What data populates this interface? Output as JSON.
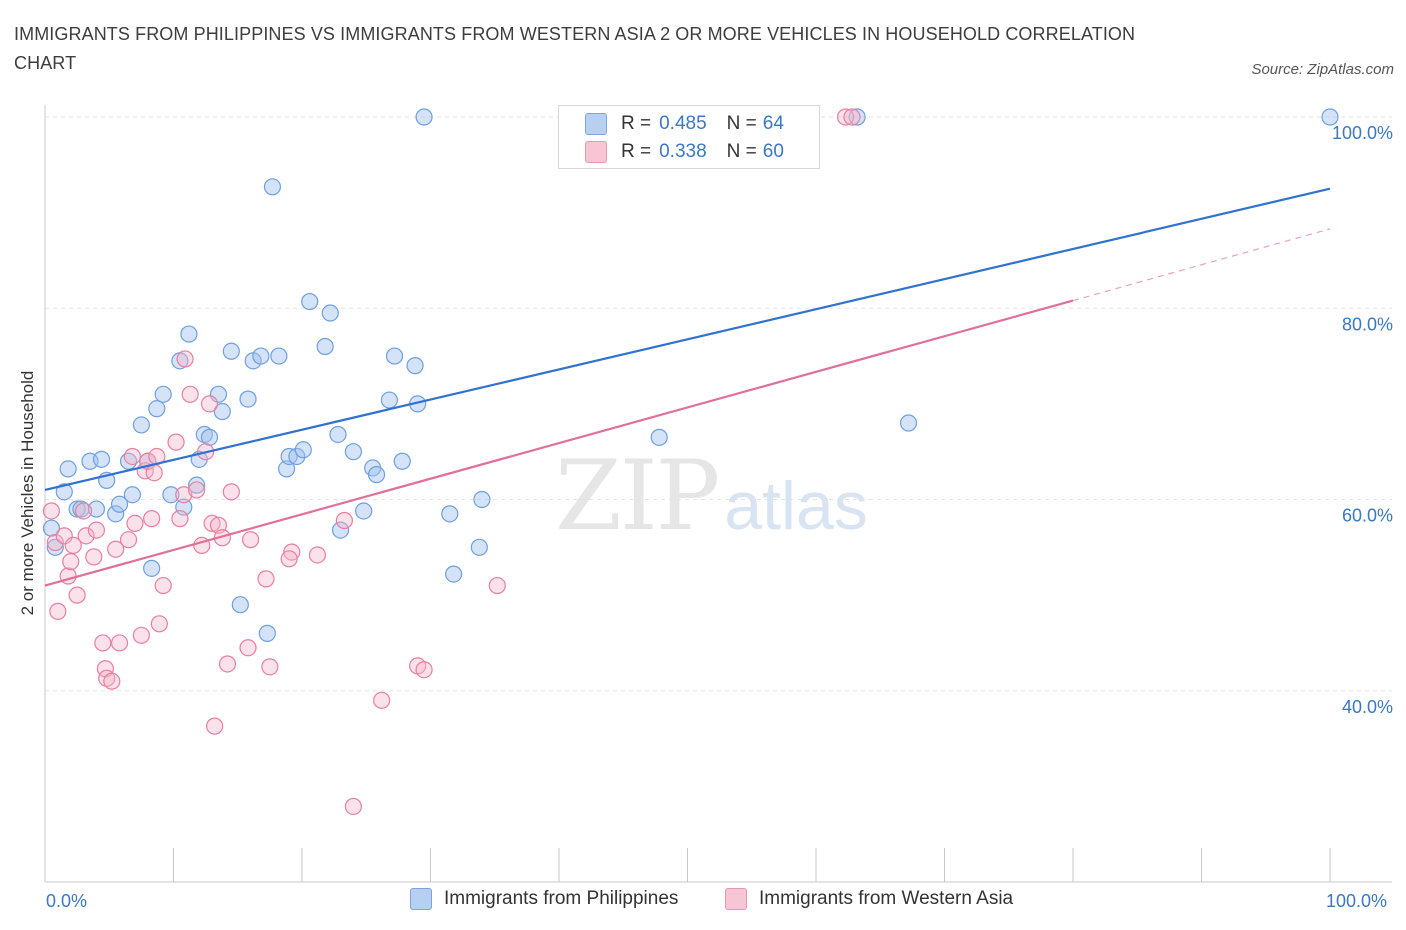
{
  "title": "IMMIGRANTS FROM PHILIPPINES VS IMMIGRANTS FROM WESTERN ASIA 2 OR MORE VEHICLES IN HOUSEHOLD CORRELATION CHART",
  "source": "Source: ZipAtlas.com",
  "watermark": {
    "zip": "ZIP",
    "atlas": "atlas"
  },
  "legend_top": [
    {
      "r_label": "R =",
      "r_value": "0.485",
      "n_label": "N =",
      "n_value": "64",
      "fill": "#b7cff0",
      "stroke": "#7ca3db"
    },
    {
      "r_label": "R =",
      "r_value": "0.338",
      "n_label": "N =",
      "n_value": "60",
      "fill": "#f7c5d3",
      "stroke": "#e996b0"
    }
  ],
  "chart_data": {
    "type": "scatter",
    "title": "IMMIGRANTS FROM PHILIPPINES VS IMMIGRANTS FROM WESTERN ASIA 2 OR MORE VEHICLES IN HOUSEHOLD CORRELATION CHART",
    "xlabel": "",
    "ylabel": "2 or more Vehicles in Household",
    "xlim": [
      0,
      100
    ],
    "ylim": [
      20,
      100
    ],
    "x_tick_labels": [
      "0.0%",
      "100.0%"
    ],
    "y_ticks": [
      40,
      60,
      80,
      100
    ],
    "y_tick_labels": [
      "40.0%",
      "60.0%",
      "80.0%",
      "100.0%"
    ],
    "grid": true,
    "legend": "bottom",
    "series": [
      {
        "name": "Immigrants from Philippines",
        "color": "#6f9fe0",
        "fill": "rgba(160,192,238,0.45)",
        "trend": {
          "x0": 0,
          "y0": 61.0,
          "x1": 100,
          "y1": 92.5
        },
        "points": [
          [
            0.5,
            57.0
          ],
          [
            0.8,
            55.0
          ],
          [
            1.5,
            60.8
          ],
          [
            1.8,
            63.2
          ],
          [
            2.5,
            59.0
          ],
          [
            2.8,
            59.0
          ],
          [
            3.5,
            64.0
          ],
          [
            4.0,
            59.0
          ],
          [
            4.4,
            64.2
          ],
          [
            4.8,
            62.0
          ],
          [
            5.5,
            58.5
          ],
          [
            5.8,
            59.5
          ],
          [
            6.5,
            64.0
          ],
          [
            6.8,
            60.5
          ],
          [
            7.5,
            67.8
          ],
          [
            8.0,
            64.0
          ],
          [
            8.3,
            52.8
          ],
          [
            8.7,
            69.5
          ],
          [
            9.2,
            71.0
          ],
          [
            9.8,
            60.5
          ],
          [
            10.5,
            74.5
          ],
          [
            10.8,
            59.2
          ],
          [
            11.2,
            77.3
          ],
          [
            11.8,
            61.5
          ],
          [
            12.0,
            64.2
          ],
          [
            12.4,
            66.8
          ],
          [
            12.8,
            66.5
          ],
          [
            13.5,
            71.0
          ],
          [
            13.8,
            69.2
          ],
          [
            14.5,
            75.5
          ],
          [
            15.2,
            49.0
          ],
          [
            15.8,
            70.5
          ],
          [
            16.2,
            74.5
          ],
          [
            16.8,
            75.0
          ],
          [
            17.3,
            46.0
          ],
          [
            17.7,
            92.7
          ],
          [
            18.2,
            75.0
          ],
          [
            18.8,
            63.2
          ],
          [
            19.0,
            64.5
          ],
          [
            19.6,
            64.5
          ],
          [
            20.1,
            65.2
          ],
          [
            20.6,
            80.7
          ],
          [
            21.8,
            76.0
          ],
          [
            22.2,
            79.5
          ],
          [
            22.8,
            66.8
          ],
          [
            23.0,
            56.8
          ],
          [
            24.0,
            65.0
          ],
          [
            24.8,
            58.8
          ],
          [
            25.5,
            63.3
          ],
          [
            25.8,
            62.6
          ],
          [
            26.8,
            70.4
          ],
          [
            27.2,
            75.0
          ],
          [
            27.8,
            64.0
          ],
          [
            28.8,
            74.0
          ],
          [
            29.0,
            70.0
          ],
          [
            29.5,
            100.0
          ],
          [
            31.5,
            58.5
          ],
          [
            31.8,
            52.2
          ],
          [
            33.8,
            55.0
          ],
          [
            34.0,
            60.0
          ],
          [
            47.8,
            66.5
          ],
          [
            63.2,
            100.0
          ],
          [
            67.2,
            68.0
          ],
          [
            100.0,
            100.0
          ]
        ]
      },
      {
        "name": "Immigrants from Western Asia",
        "color": "#e87fa0",
        "fill": "rgba(245,180,200,0.40)",
        "trend": {
          "x0": 0,
          "y0": 51.0,
          "x1": 80,
          "y1": 80.8
        },
        "trend_dashed": {
          "x0": 80,
          "y0": 80.8,
          "x1": 100,
          "y1": 88.3
        },
        "points": [
          [
            0.5,
            58.8
          ],
          [
            0.8,
            55.5
          ],
          [
            1.0,
            48.3
          ],
          [
            1.5,
            56.2
          ],
          [
            1.8,
            52.0
          ],
          [
            2.0,
            53.5
          ],
          [
            2.2,
            55.2
          ],
          [
            2.5,
            50.0
          ],
          [
            3.0,
            58.8
          ],
          [
            3.2,
            56.2
          ],
          [
            3.8,
            54.0
          ],
          [
            4.0,
            56.8
          ],
          [
            4.5,
            45.0
          ],
          [
            4.7,
            42.3
          ],
          [
            4.8,
            41.3
          ],
          [
            5.2,
            41.0
          ],
          [
            5.5,
            54.8
          ],
          [
            5.8,
            45.0
          ],
          [
            6.5,
            55.8
          ],
          [
            6.8,
            64.5
          ],
          [
            7.0,
            57.5
          ],
          [
            7.5,
            45.8
          ],
          [
            7.8,
            63.0
          ],
          [
            8.0,
            64.0
          ],
          [
            8.3,
            58.0
          ],
          [
            8.5,
            62.8
          ],
          [
            8.7,
            64.5
          ],
          [
            8.9,
            47.0
          ],
          [
            9.2,
            51.0
          ],
          [
            10.2,
            66.0
          ],
          [
            10.5,
            58.0
          ],
          [
            10.8,
            60.5
          ],
          [
            10.9,
            74.7
          ],
          [
            11.3,
            71.0
          ],
          [
            11.8,
            61.0
          ],
          [
            12.2,
            55.2
          ],
          [
            12.5,
            65.0
          ],
          [
            12.8,
            70.0
          ],
          [
            13.0,
            57.5
          ],
          [
            13.2,
            36.3
          ],
          [
            13.5,
            57.3
          ],
          [
            13.8,
            56.0
          ],
          [
            14.2,
            42.8
          ],
          [
            14.5,
            60.8
          ],
          [
            15.8,
            44.5
          ],
          [
            16.0,
            55.8
          ],
          [
            17.2,
            51.7
          ],
          [
            17.5,
            42.5
          ],
          [
            19.2,
            54.5
          ],
          [
            19.0,
            53.8
          ],
          [
            21.2,
            54.2
          ],
          [
            23.3,
            57.8
          ],
          [
            24.0,
            27.9
          ],
          [
            26.2,
            39.0
          ],
          [
            29.0,
            42.6
          ],
          [
            29.5,
            42.2
          ],
          [
            35.2,
            51.0
          ],
          [
            42.0,
            100.0
          ],
          [
            62.3,
            100.0
          ],
          [
            62.8,
            100.0
          ]
        ]
      }
    ]
  }
}
